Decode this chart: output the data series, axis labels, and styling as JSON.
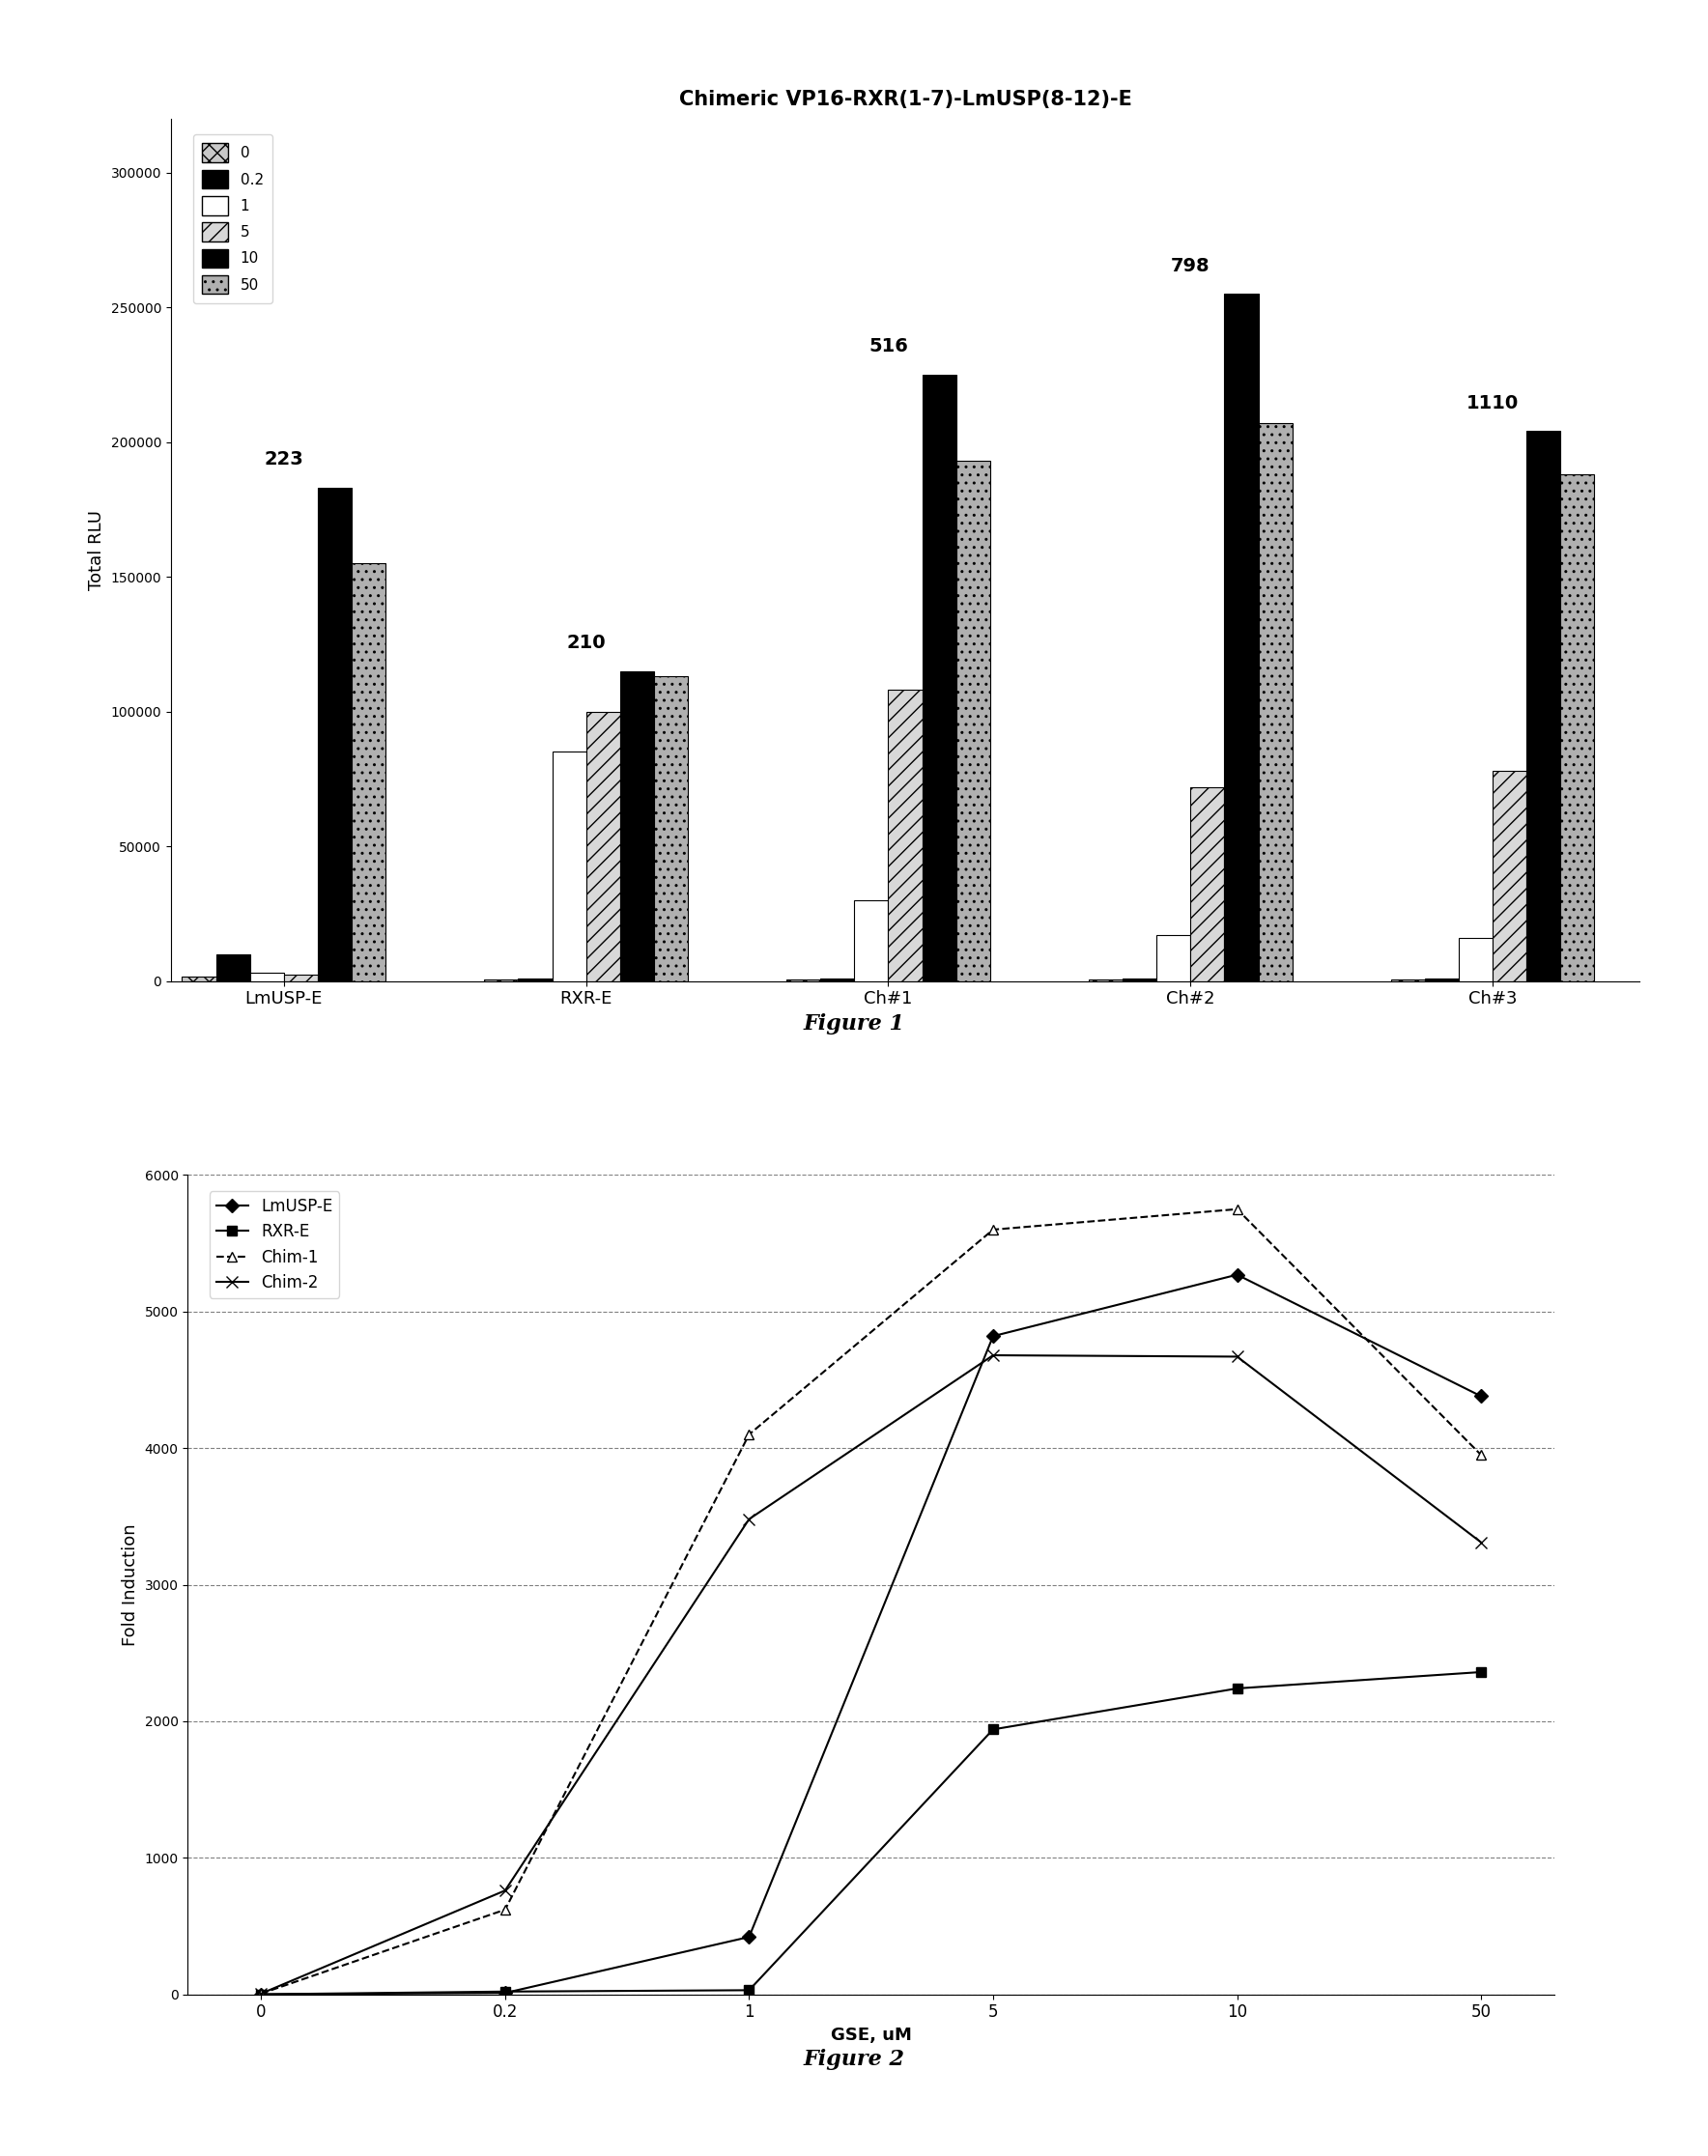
{
  "title1": "Chimeric VP16-RXR(1-7)-LmUSP(8-12)-E",
  "fig1_ylabel": "Total RLU",
  "fig1_categories": [
    "LmUSP-E",
    "RXR-E",
    "Ch#1",
    "Ch#2",
    "Ch#3"
  ],
  "fig1_legend_labels": [
    "0",
    "0.2",
    "1",
    "5",
    "10",
    "50"
  ],
  "fig1_bar_annotations": [
    "223",
    "210",
    "516",
    "798",
    "1110"
  ],
  "fig1_ylim": [
    0,
    320000
  ],
  "fig1_yticks": [
    0,
    50000,
    100000,
    150000,
    200000,
    250000,
    300000
  ],
  "fig1_data": {
    "LmUSP-E": [
      1500,
      10000,
      3000,
      2500,
      183000,
      155000
    ],
    "RXR-E": [
      500,
      1000,
      85000,
      100000,
      115000,
      113000
    ],
    "Ch#1": [
      500,
      1000,
      30000,
      108000,
      225000,
      193000
    ],
    "Ch#2": [
      500,
      1000,
      17000,
      72000,
      255000,
      207000
    ],
    "Ch#3": [
      500,
      1000,
      16000,
      78000,
      204000,
      188000
    ]
  },
  "fig1_annot_heights": {
    "LmUSP-E": 183000,
    "RXR-E": 115000,
    "Ch#1": 225000,
    "Ch#2": 255000,
    "Ch#3": 204000
  },
  "fig2_xlabel": "GSE, uM",
  "fig2_ylabel": "Fold Induction",
  "fig2_ylim": [
    0,
    6000
  ],
  "fig2_yticks": [
    0,
    1000,
    2000,
    3000,
    4000,
    5000,
    6000
  ],
  "fig2_xvals": [
    0,
    0.2,
    1,
    5,
    10,
    50
  ],
  "fig2_data": {
    "LmUSP-E": [
      0,
      10,
      420,
      4820,
      5270,
      4380
    ],
    "RXR-E": [
      0,
      20,
      30,
      1940,
      2240,
      2360
    ],
    "Chim-1": [
      5,
      620,
      4100,
      5600,
      5750,
      3950
    ],
    "Chim-2": [
      5,
      760,
      3480,
      4680,
      4670,
      3310
    ]
  }
}
